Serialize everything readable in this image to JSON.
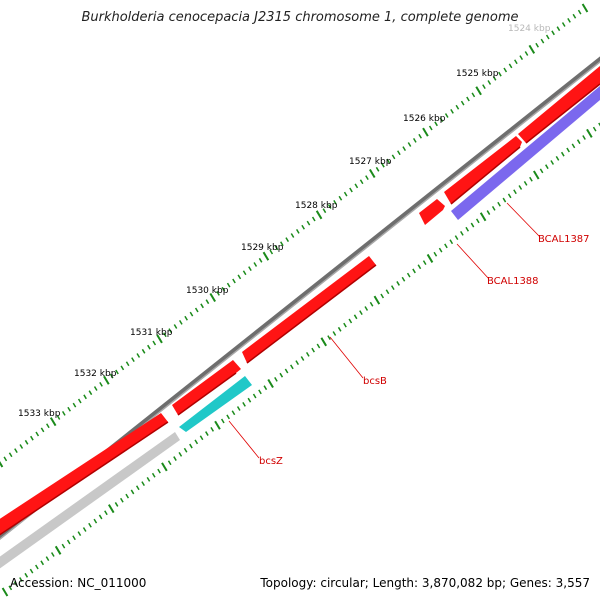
{
  "title": "Burkholderia cenocepacia J2315 chromosome 1, complete genome",
  "footer": {
    "accession": "Accession: NC_011000",
    "stats": "Topology: circular; Length: 3,870,082 bp; Genes: 3,557"
  },
  "colors": {
    "backbone": "#808080",
    "forward_gene": "#ff0000",
    "reverse_gene": "#7b68ee",
    "other_gene": "#c8c8c8",
    "highlight_gene": "#20c0c0",
    "scale": "#1a8a1a",
    "label": "#d00000",
    "leader": "#e00000"
  },
  "scale_ticks": [
    {
      "label": "1524 kbp",
      "faded": true
    },
    {
      "label": "1525 kbp"
    },
    {
      "label": "1526 kbp"
    },
    {
      "label": "1527 kbp"
    },
    {
      "label": "1528 kbp"
    },
    {
      "label": "1529 kbp"
    },
    {
      "label": "1530 kbp"
    },
    {
      "label": "1531 kbp"
    },
    {
      "label": "1532 kbp"
    },
    {
      "label": "1533 kbp"
    }
  ],
  "gene_labels": {
    "bcal1387": "BCAL1387",
    "bcal1388": "BCAL1388",
    "bcsB": "bcsB",
    "bcsZ": "bcsZ"
  }
}
